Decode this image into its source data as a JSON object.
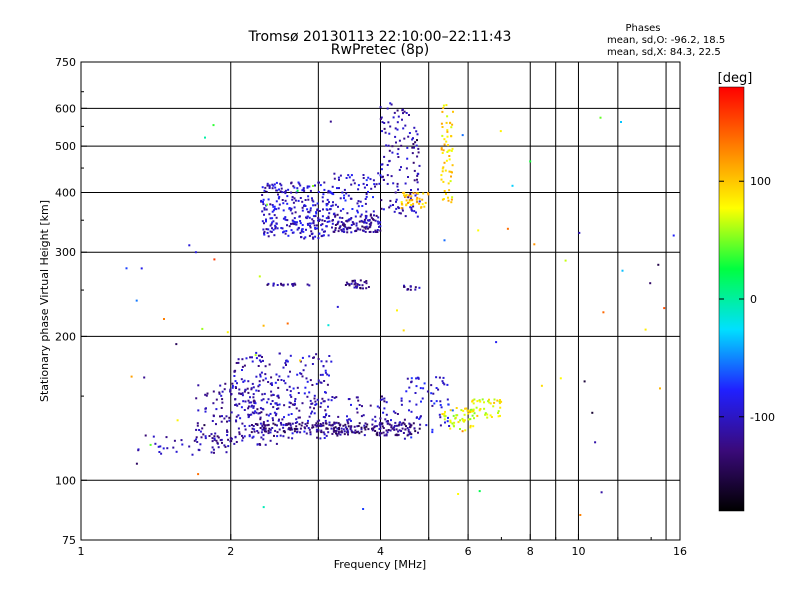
{
  "chart_data": {
    "type": "scatter",
    "title_line1": "Tromsø 20130113 22:10:00–22:11:43",
    "title_line2": "RwPretec (8p)",
    "phases_box": {
      "heading": "Phases",
      "line_o": "mean, sd,O: -96.2, 18.5",
      "line_x": "mean, sd,X:  84.3, 22.5"
    },
    "xlabel": "Frequency [MHz]",
    "ylabel": "Stationary phase Virtual Height [km]",
    "x_scale": "log",
    "y_scale": "log",
    "xlim": [
      1,
      16
    ],
    "ylim": [
      75,
      750
    ],
    "x_ticks": [
      1,
      2,
      4,
      6,
      8,
      10,
      16
    ],
    "x_tick_labels": [
      "1",
      "2",
      "4",
      "6",
      "8",
      "10",
      "16"
    ],
    "y_ticks": [
      75,
      100,
      200,
      300,
      400,
      500,
      600,
      750
    ],
    "y_tick_labels": [
      "75",
      "100",
      "200",
      "300",
      "400",
      "500",
      "600",
      "750"
    ],
    "grid": true,
    "colorbar": {
      "label": "[deg]",
      "range": [
        -180,
        180
      ],
      "ticks": [
        100,
        0,
        -100
      ],
      "tick_labels": [
        "100",
        "0",
        "-100"
      ],
      "colors": [
        "#000000",
        "#3a0a7a",
        "#2020ff",
        "#00e0ff",
        "#00ff40",
        "#ffff00",
        "#ff8000",
        "#ff0000"
      ]
    },
    "point_groups": [
      {
        "x_range": [
          1.3,
          2.0
        ],
        "y_range": [
          112,
          125
        ],
        "phase": -110,
        "n": 40
      },
      {
        "x_range": [
          1.7,
          2.5
        ],
        "y_range": [
          118,
          160
        ],
        "phase": -115,
        "n": 150
      },
      {
        "x_range": [
          2.0,
          3.2
        ],
        "y_range": [
          122,
          185
        ],
        "phase": -105,
        "n": 260
      },
      {
        "x_range": [
          2.2,
          3.5
        ],
        "y_range": [
          126,
          132
        ],
        "phase": -125,
        "n": 120
      },
      {
        "x_range": [
          3.2,
          4.8
        ],
        "y_range": [
          124,
          132
        ],
        "phase": -125,
        "n": 140
      },
      {
        "x_range": [
          3.0,
          4.5
        ],
        "y_range": [
          132,
          150
        ],
        "phase": -110,
        "n": 60
      },
      {
        "x_range": [
          4.5,
          5.5
        ],
        "y_range": [
          126,
          165
        ],
        "phase": -95,
        "n": 60
      },
      {
        "x_range": [
          5.3,
          6.2
        ],
        "y_range": [
          127,
          142
        ],
        "phase": 75,
        "n": 50
      },
      {
        "x_range": [
          6.0,
          7.0
        ],
        "y_range": [
          135,
          148
        ],
        "phase": 80,
        "n": 40
      },
      {
        "x_range": [
          2.3,
          2.9
        ],
        "y_range": [
          255,
          258
        ],
        "phase": -120,
        "n": 20
      },
      {
        "x_range": [
          3.4,
          3.8
        ],
        "y_range": [
          252,
          262
        ],
        "phase": -125,
        "n": 30
      },
      {
        "x_range": [
          4.4,
          4.8
        ],
        "y_range": [
          250,
          256
        ],
        "phase": -115,
        "n": 12
      },
      {
        "x_range": [
          2.3,
          3.2
        ],
        "y_range": [
          320,
          420
        ],
        "phase": -100,
        "n": 280
      },
      {
        "x_range": [
          3.2,
          4.0
        ],
        "y_range": [
          330,
          360
        ],
        "phase": -115,
        "n": 120
      },
      {
        "x_range": [
          3.2,
          4.0
        ],
        "y_range": [
          360,
          440
        ],
        "phase": -95,
        "n": 70
      },
      {
        "x_range": [
          4.0,
          4.8
        ],
        "y_range": [
          355,
          620
        ],
        "phase": -110,
        "n": 130
      },
      {
        "x_range": [
          4.4,
          5.0
        ],
        "y_range": [
          370,
          400
        ],
        "phase": 100,
        "n": 40
      },
      {
        "x_range": [
          5.3,
          5.6
        ],
        "y_range": [
          380,
          620
        ],
        "phase": 90,
        "n": 60
      },
      {
        "x_range": [
          1.2,
          16.0
        ],
        "y_range": [
          80,
          650
        ],
        "phase": 0,
        "n": 70,
        "phase_spread": 160
      }
    ]
  }
}
